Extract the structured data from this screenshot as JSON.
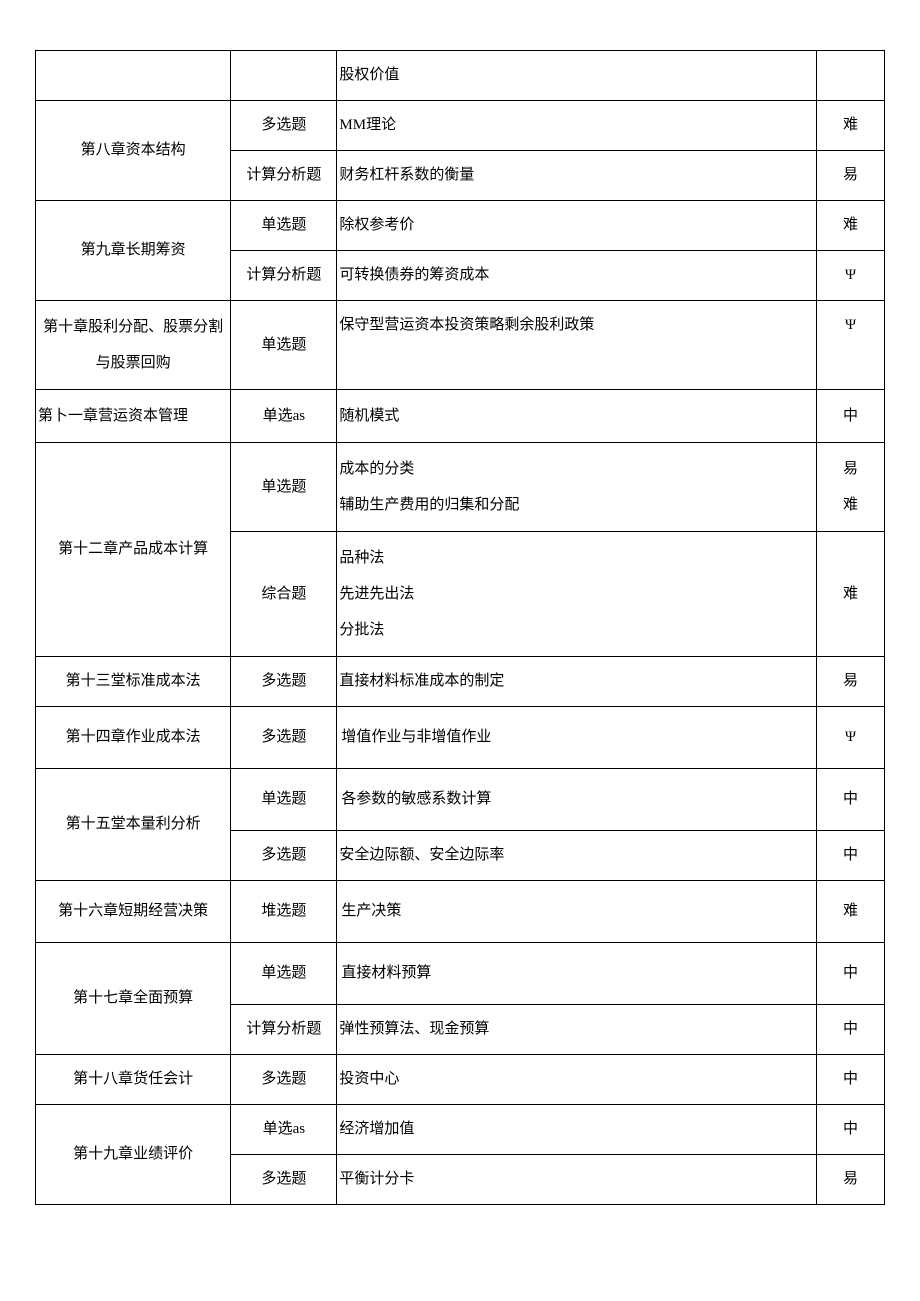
{
  "table": {
    "rows": [
      {
        "chapter": "",
        "type": "",
        "topic": "股权价值",
        "difficulty": ""
      },
      {
        "chapter": "第八章资本结构",
        "chapterRowspan": 2,
        "type": "多选题",
        "topic": "MM理论",
        "difficulty": "难"
      },
      {
        "type": "计算分析题",
        "topic": "财务杠杆系数的衡量",
        "difficulty": "易"
      },
      {
        "chapter": "第九章长期筹资",
        "chapterRowspan": 2,
        "type": "单选题",
        "topic": "除权参考价",
        "difficulty": "难"
      },
      {
        "type": "计算分析题",
        "topic": "可转换债券的筹资成本",
        "difficulty": "Ψ"
      },
      {
        "chapter": "第十章股利分配、股票分割与股票回购",
        "chapterMultiline": true,
        "type": "单选题",
        "topic": "保守型营运资本投资策略剩余股利政策",
        "difficulty": "Ψ",
        "topValign": true
      },
      {
        "chapter": "第卜一章营运资本管理",
        "chapterMultiline": true,
        "chapterLeftAlign": true,
        "type": "单选as",
        "topic": "随机模式",
        "difficulty": "中"
      },
      {
        "chapter": "第十二章产品成本计算",
        "chapterRowspan": 2,
        "type": "单选题",
        "topicLines": [
          "成本的分类",
          "辅助生产费用的归集和分配"
        ],
        "difficultyLines": [
          "易",
          "难"
        ]
      },
      {
        "type": "综合题",
        "topicLines": [
          "品种法",
          "先进先出法",
          "分批法"
        ],
        "difficulty": "难"
      },
      {
        "chapter": "第十三堂标准成本法",
        "type": "多选题",
        "topic": "直接材料标准成本的制定",
        "difficulty": "易"
      },
      {
        "chapter": "第十四章作业成本法",
        "type": "多选题",
        "topic": "增值作业与非增值作业",
        "difficulty": "Ψ",
        "tall": true
      },
      {
        "chapter": "第十五堂本量利分析",
        "chapterRowspan": 2,
        "type": "单选题",
        "topic": "各参数的敏感系数计算",
        "difficulty": "中",
        "tall": true
      },
      {
        "type": "多选题",
        "topic": "安全边际额、安全边际率",
        "difficulty": "中"
      },
      {
        "chapter": "第十六章短期经营决策",
        "type": "堆选题",
        "topic": "生产决策",
        "difficulty": "难",
        "tall": true
      },
      {
        "chapter": "第十七章全面预算",
        "chapterRowspan": 2,
        "type": "单选题",
        "topic": "直接材料预算",
        "difficulty": "中",
        "tall": true,
        "topValign": true
      },
      {
        "type": "计算分析题",
        "topic": "弹性预算法、现金预算",
        "difficulty": "中"
      },
      {
        "chapter": "第十八章货任会计",
        "type": "多选题",
        "topic": "投资中心",
        "difficulty": "中"
      },
      {
        "chapter": "第十九章业绩评价",
        "chapterRowspan": 2,
        "type": "单选as",
        "topic": "经济增加值",
        "difficulty": "中"
      },
      {
        "type": "多选题",
        "topic": "平衡计分卡",
        "difficulty": "易"
      }
    ]
  },
  "colors": {
    "border": "#000000",
    "text": "#000000",
    "background": "#ffffff"
  },
  "typography": {
    "fontFamily": "SimSun",
    "fontSize": 15,
    "lineHeight": 2.2
  }
}
